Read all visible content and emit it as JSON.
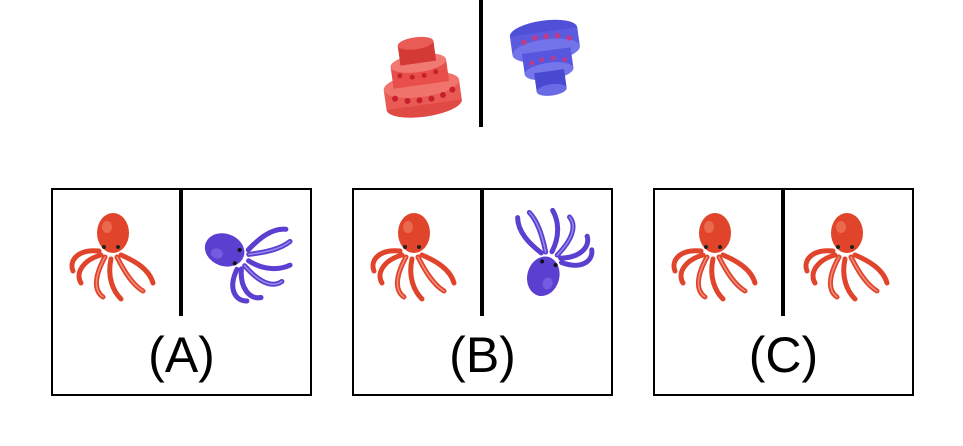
{
  "colors": {
    "red": "#e0442b",
    "red_light": "#f08070",
    "purple": "#5a3fd0",
    "purple_light": "#8a78ee",
    "cake_red": "#ea5a55",
    "cake_blue": "#5b5be0"
  },
  "example": {
    "left_icon": "red-tilted-cake",
    "right_icon": "blue-inverted-cake"
  },
  "options": [
    {
      "label": "(A)",
      "left_icon": "red-octopus",
      "right_icon": "purple-octopus-rotated"
    },
    {
      "label": "(B)",
      "left_icon": "red-octopus",
      "right_icon": "purple-octopus-inverted"
    },
    {
      "label": "(C)",
      "left_icon": "red-octopus",
      "right_icon": "red-octopus"
    }
  ]
}
